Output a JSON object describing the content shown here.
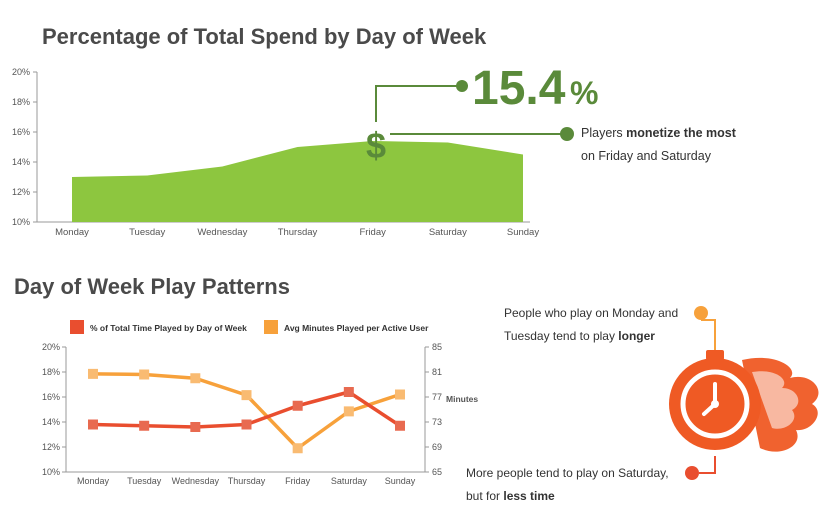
{
  "chart_data": [
    {
      "type": "area",
      "title": "Percentage of Total Spend by Day of Week",
      "categories": [
        "Monday",
        "Tuesday",
        "Wednesday",
        "Thursday",
        "Friday",
        "Saturday",
        "Sunday"
      ],
      "values": [
        13.0,
        13.1,
        13.7,
        15.0,
        15.4,
        15.3,
        14.5
      ],
      "y_ticks": [
        "20%",
        "18%",
        "16%",
        "14%",
        "12%",
        "10%"
      ],
      "ylim": [
        10,
        20
      ],
      "grid": false,
      "fill_color": "#8dc63f",
      "highlight": {
        "value_text": "15.4",
        "unit_text": "%",
        "icon": "dollar-sign-icon",
        "color": "#5a8a3a",
        "note_prefix": "Players ",
        "note_bold": "monetize the most",
        "note_line2": "on Friday and Saturday"
      }
    },
    {
      "type": "line",
      "title": "Day of Week Play Patterns",
      "categories": [
        "Monday",
        "Tuesday",
        "Wednesday",
        "Thursday",
        "Friday",
        "Saturday",
        "Sunday"
      ],
      "series": [
        {
          "name": "% of Total Time Played by Day of Week",
          "axis": "left",
          "color": "#e94e2f",
          "values": [
            13.8,
            13.7,
            13.6,
            13.8,
            15.3,
            16.4,
            13.7
          ]
        },
        {
          "name": "Avg Minutes Played per Active User",
          "axis": "right",
          "color": "#f7a13b",
          "values": [
            80.7,
            80.6,
            80.0,
            77.3,
            68.8,
            74.7,
            77.4
          ]
        }
      ],
      "y_ticks_left": [
        "20%",
        "18%",
        "16%",
        "14%",
        "12%",
        "10%"
      ],
      "ylim_left": [
        10,
        20
      ],
      "y_ticks_right": [
        "85",
        "81",
        "77",
        "73",
        "69",
        "65"
      ],
      "ylim_right": [
        65,
        85
      ],
      "ylabel_right": "Minutes",
      "legend_position": "top",
      "grid": false,
      "icon": "stopwatch-flame-icon",
      "icon_color": "#ef5a24",
      "callout_top": {
        "line1": "People who play on Monday and",
        "line2_prefix": "Tuesday tend to play ",
        "line2_bold": "longer",
        "dot_color": "#f7a13b"
      },
      "callout_bottom": {
        "line1": "More people tend to play on Saturday,",
        "line2_prefix": "but for ",
        "line2_bold": "less time",
        "dot_color": "#e94e2f"
      }
    }
  ]
}
